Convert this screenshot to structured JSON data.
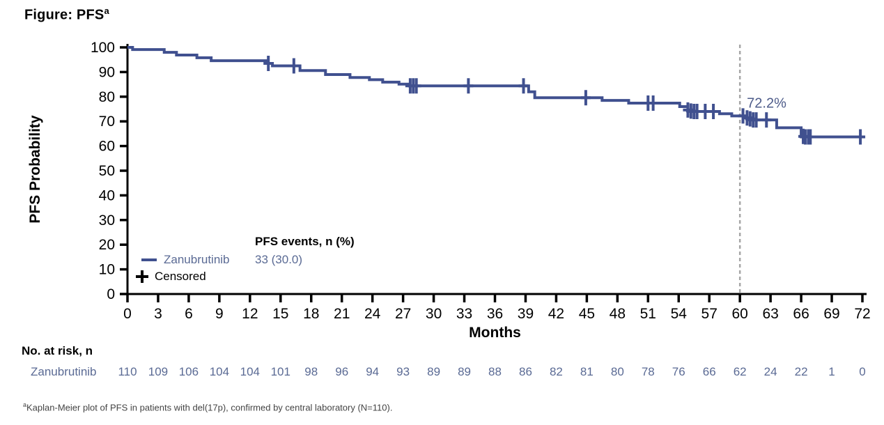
{
  "title": {
    "text": "Figure: PFS",
    "superscript": "a"
  },
  "colors": {
    "curve": "#40508f",
    "slate_text": "#5a6a94",
    "annotation_text": "#4e5c8a",
    "dashed_line": "#a6a6a6",
    "axis": "#000000"
  },
  "chart_data": {
    "type": "line",
    "subtype": "kaplan-meier-step",
    "title": "Figure: PFS",
    "xlabel": "Months",
    "ylabel": "PFS Probability",
    "xlim": [
      0,
      72
    ],
    "ylim": [
      0,
      100
    ],
    "x_ticks": [
      0,
      3,
      6,
      9,
      12,
      15,
      18,
      21,
      24,
      27,
      30,
      33,
      36,
      39,
      42,
      45,
      48,
      51,
      54,
      57,
      60,
      63,
      66,
      69,
      72
    ],
    "y_ticks": [
      0,
      10,
      20,
      30,
      40,
      50,
      60,
      70,
      80,
      90,
      100
    ],
    "grid": false,
    "series": [
      {
        "name": "Zanubrutinib",
        "pfs_events_n_pct": "33 (30.0)",
        "end_month": 72,
        "steps": [
          [
            0,
            100
          ],
          [
            0.5,
            99.1
          ],
          [
            3.6,
            98.0
          ],
          [
            4.8,
            96.9
          ],
          [
            6.8,
            95.8
          ],
          [
            8.2,
            94.6
          ],
          [
            13.7,
            93.5
          ],
          [
            14.2,
            92.5
          ],
          [
            16.9,
            90.6
          ],
          [
            19.4,
            89.0
          ],
          [
            21.8,
            87.8
          ],
          [
            23.7,
            86.9
          ],
          [
            25.0,
            85.9
          ],
          [
            26.6,
            85.1
          ],
          [
            27.6,
            84.4
          ],
          [
            39.3,
            82.0
          ],
          [
            39.9,
            79.6
          ],
          [
            46.5,
            78.5
          ],
          [
            49.1,
            77.4
          ],
          [
            54.1,
            76.0
          ],
          [
            54.9,
            74.6
          ],
          [
            55.4,
            74.0
          ],
          [
            58.0,
            73.1
          ],
          [
            59.2,
            72.2
          ],
          [
            60.7,
            71.4
          ],
          [
            61.2,
            70.6
          ],
          [
            63.6,
            67.4
          ],
          [
            66.0,
            63.7
          ]
        ]
      }
    ],
    "censored": [
      [
        13.8,
        93.5
      ],
      [
        16.3,
        92.5
      ],
      [
        27.7,
        84.4
      ],
      [
        28.0,
        84.4
      ],
      [
        28.3,
        84.4
      ],
      [
        33.4,
        84.4
      ],
      [
        38.8,
        84.4
      ],
      [
        44.9,
        79.6
      ],
      [
        51.0,
        77.4
      ],
      [
        51.5,
        77.4
      ],
      [
        54.9,
        74.6
      ],
      [
        55.2,
        74.2
      ],
      [
        55.5,
        74.0
      ],
      [
        55.8,
        74.0
      ],
      [
        56.6,
        74.0
      ],
      [
        57.4,
        74.0
      ],
      [
        60.3,
        72.2
      ],
      [
        60.7,
        71.4
      ],
      [
        61.0,
        71.0
      ],
      [
        61.3,
        70.6
      ],
      [
        61.6,
        70.6
      ],
      [
        62.6,
        70.6
      ],
      [
        66.2,
        63.9
      ],
      [
        66.4,
        63.7
      ],
      [
        66.7,
        63.7
      ],
      [
        66.9,
        63.7
      ],
      [
        71.8,
        63.7
      ]
    ],
    "reference_line": {
      "x": 60,
      "style": "dashed"
    },
    "annotation": {
      "text": "72.2%",
      "x": 60,
      "y": 72.2
    },
    "legend_position": "lower-left-inside"
  },
  "legend": {
    "header": "PFS events, n (%)",
    "series_label": "Zanubrutinib",
    "series_value": "33 (30.0)",
    "censored_label": "Censored"
  },
  "risk_table": {
    "header": "No. at risk, n",
    "row_label": "Zanubrutinib",
    "months": [
      0,
      3,
      6,
      9,
      12,
      15,
      18,
      21,
      24,
      27,
      30,
      33,
      36,
      39,
      42,
      45,
      48,
      51,
      54,
      57,
      60,
      63,
      66,
      69,
      72
    ],
    "values": [
      110,
      109,
      106,
      104,
      104,
      101,
      98,
      96,
      94,
      93,
      89,
      89,
      88,
      86,
      82,
      81,
      80,
      78,
      76,
      66,
      62,
      24,
      22,
      1,
      0
    ]
  },
  "footnote": {
    "superscript": "a",
    "text": "Kaplan-Meier plot of PFS in patients with del(17p), confirmed by central laboratory (N=110)."
  }
}
